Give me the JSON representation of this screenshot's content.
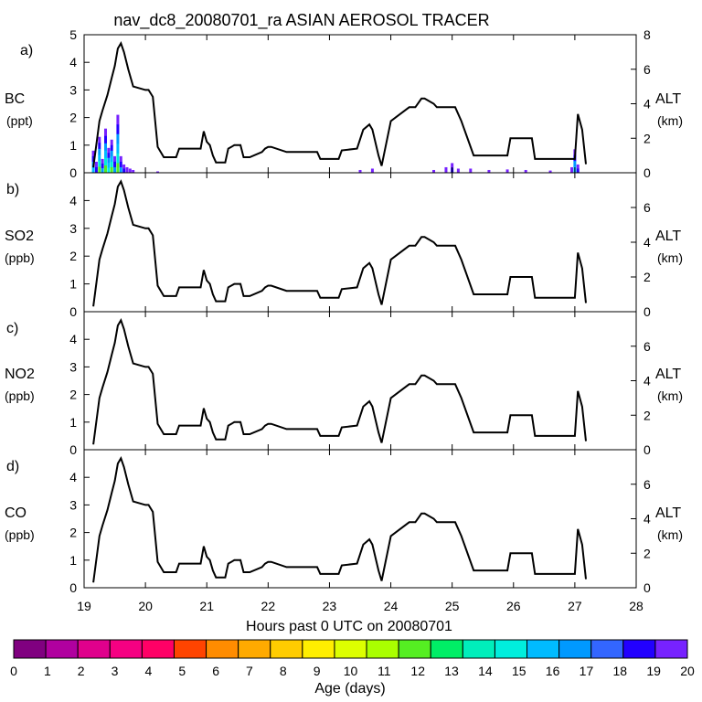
{
  "title": "nav_dc8_20080701_ra ASIAN AEROSOL TRACER",
  "xlabel": "Hours past 0 UTC on 20080701",
  "colorbar": {
    "label": "Age (days)",
    "ticks": [
      "0",
      "1",
      "2",
      "3",
      "4",
      "5",
      "6",
      "7",
      "8",
      "9",
      "10",
      "11",
      "12",
      "13",
      "14",
      "15",
      "16",
      "17",
      "18",
      "19",
      "20"
    ],
    "colors": [
      "#800080",
      "#b0009f",
      "#e0008c",
      "#f50082",
      "#ff0066",
      "#ff4400",
      "#ff8c00",
      "#ffaa00",
      "#ffcc00",
      "#ffee00",
      "#ddff00",
      "#aaff00",
      "#55ee22",
      "#00ee66",
      "#00eebb",
      "#00eedd",
      "#00bbff",
      "#0099ff",
      "#3366ff",
      "#2200ff",
      "#7722ff"
    ]
  },
  "chart_data": [
    {
      "type": "area",
      "panel_letter": "a)",
      "ylabel": "BC",
      "yunit": "(ppt)",
      "y2label": "ALT",
      "y2unit": "(km)",
      "xlim": [
        19,
        28
      ],
      "ylim": [
        0,
        5
      ],
      "y2lim": [
        0,
        8
      ],
      "xticks": [
        "19",
        "20",
        "21",
        "22",
        "23",
        "24",
        "25",
        "26",
        "27",
        "28"
      ],
      "yticks": [
        "0",
        "1",
        "2",
        "3",
        "4",
        "5"
      ],
      "y2ticks": [
        "0",
        "2",
        "4",
        "6",
        "8"
      ],
      "series": [
        {
          "x": [
            19.15,
            19.2,
            19.25,
            19.3,
            19.35,
            19.4,
            19.45,
            19.5,
            19.55,
            19.6,
            19.65,
            19.7,
            19.75,
            19.8,
            20.2,
            23.5,
            23.7,
            24.7,
            24.9,
            25.0,
            25.1,
            25.3,
            25.6,
            25.9,
            26.2,
            26.6,
            26.95,
            27.0,
            27.05
          ],
          "values": [
            0.8,
            0.4,
            1.3,
            0.5,
            1.6,
            0.9,
            1.2,
            0.6,
            2.1,
            0.6,
            0.3,
            0.2,
            0.15,
            0.1,
            0.05,
            0.1,
            0.15,
            0.1,
            0.2,
            0.35,
            0.15,
            0.15,
            0.1,
            0.12,
            0.1,
            0.08,
            0.2,
            0.85,
            0.3
          ]
        }
      ]
    },
    {
      "type": "line",
      "panel_letter": "b)",
      "ylabel": "SO2",
      "yunit": "(ppb)",
      "y2label": "ALT",
      "y2unit": "(km)",
      "xlim": [
        19,
        28
      ],
      "ylim": [
        0,
        5
      ],
      "y2lim": [
        0,
        8
      ],
      "xticks": [
        "19",
        "20",
        "21",
        "22",
        "23",
        "24",
        "25",
        "26",
        "27",
        "28"
      ],
      "yticks": [
        "0",
        "1",
        "2",
        "3",
        "4"
      ],
      "y2ticks": [
        "0",
        "2",
        "4",
        "6"
      ],
      "series": []
    },
    {
      "type": "line",
      "panel_letter": "c)",
      "ylabel": "NO2",
      "yunit": "(ppb)",
      "y2label": "ALT",
      "y2unit": "(km)",
      "xlim": [
        19,
        28
      ],
      "ylim": [
        0,
        5
      ],
      "y2lim": [
        0,
        8
      ],
      "xticks": [
        "19",
        "20",
        "21",
        "22",
        "23",
        "24",
        "25",
        "26",
        "27",
        "28"
      ],
      "yticks": [
        "0",
        "1",
        "2",
        "3",
        "4"
      ],
      "y2ticks": [
        "0",
        "2",
        "4",
        "6"
      ],
      "series": []
    },
    {
      "type": "line",
      "panel_letter": "d)",
      "ylabel": "CO",
      "yunit": "(ppb)",
      "y2label": "ALT",
      "y2unit": "(km)",
      "xlim": [
        19,
        28
      ],
      "ylim": [
        0,
        5
      ],
      "y2lim": [
        0,
        8
      ],
      "xticks": [
        "19",
        "20",
        "21",
        "22",
        "23",
        "24",
        "25",
        "26",
        "27",
        "28"
      ],
      "xticklabels": [
        "19",
        "20",
        "21",
        "22",
        "23",
        "24",
        "25",
        "26",
        "27",
        "28"
      ],
      "yticks": [
        "0",
        "1",
        "2",
        "3",
        "4"
      ],
      "y2ticks": [
        "0",
        "2",
        "4",
        "6"
      ],
      "series": []
    }
  ],
  "altitude": {
    "x": [
      19.15,
      19.25,
      19.3,
      19.38,
      19.45,
      19.5,
      19.55,
      19.6,
      19.65,
      19.72,
      19.8,
      20.0,
      20.05,
      20.12,
      20.2,
      20.3,
      20.5,
      20.55,
      20.9,
      20.95,
      21.0,
      21.05,
      21.1,
      21.15,
      21.3,
      21.35,
      21.45,
      21.55,
      21.6,
      21.7,
      21.9,
      21.95,
      22.0,
      22.05,
      22.3,
      22.6,
      22.8,
      22.85,
      23.15,
      23.2,
      23.45,
      23.55,
      23.65,
      23.7,
      23.8,
      23.85,
      24.0,
      24.3,
      24.4,
      24.5,
      24.55,
      24.7,
      24.75,
      25.05,
      25.15,
      25.35,
      25.45,
      25.75,
      25.9,
      25.95,
      26.3,
      26.35,
      26.55,
      27.0,
      27.05,
      27.12,
      27.18
    ],
    "alt": [
      0.3,
      3.0,
      3.6,
      4.5,
      5.5,
      6.2,
      7.2,
      7.5,
      7.0,
      6.0,
      5.0,
      4.8,
      4.8,
      4.4,
      1.5,
      0.9,
      0.9,
      1.4,
      1.4,
      2.4,
      1.8,
      1.6,
      1.0,
      0.6,
      0.6,
      1.4,
      1.6,
      1.6,
      0.9,
      0.9,
      1.2,
      1.4,
      1.5,
      1.5,
      1.2,
      1.2,
      1.2,
      0.8,
      0.8,
      1.3,
      1.4,
      2.5,
      2.8,
      2.5,
      1.0,
      0.4,
      3.0,
      3.8,
      3.8,
      4.3,
      4.3,
      4.0,
      3.8,
      3.8,
      3.0,
      1.0,
      1.0,
      1.0,
      1.0,
      2.0,
      2.0,
      0.8,
      0.8,
      0.8,
      3.4,
      2.5,
      0.5
    ]
  }
}
